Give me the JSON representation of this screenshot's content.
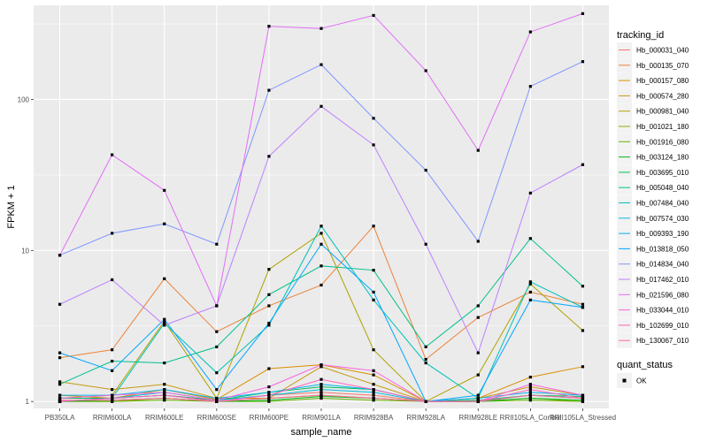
{
  "chart_data": {
    "type": "line",
    "xlabel": "sample_name",
    "ylabel": "FPKM + 1",
    "yscale": "log10",
    "ylim": [
      0.9,
      420
    ],
    "y_ticks": [
      {
        "value": 1,
        "label": "1"
      },
      {
        "value": 10,
        "label": "10"
      },
      {
        "value": 100,
        "label": "100"
      }
    ],
    "categories": [
      "PB350LA",
      "RRIM600LA",
      "RRIM600LE",
      "RRIM600SE",
      "RRIM600PE",
      "RRIM901LA",
      "RRIM928BA",
      "RRIM928LA",
      "RRIM928LE",
      "RRII105LA_Control",
      "RRII105LA_Stressed"
    ],
    "legend": {
      "title": "tracking_id",
      "position": "right",
      "shape_title": "quant_status",
      "shape_label": "OK"
    },
    "grid": true,
    "series": [
      {
        "name": "Hb_000031_040",
        "color": "#F8766D",
        "values": [
          1.0,
          1.05,
          1.1,
          1.02,
          1.1,
          1.15,
          1.1,
          1.0,
          1.0,
          1.1,
          1.05
        ]
      },
      {
        "name": "Hb_000135_070",
        "color": "#EC8239",
        "values": [
          1.95,
          2.2,
          6.5,
          2.9,
          4.3,
          5.9,
          14.5,
          1.9,
          3.6,
          5.3,
          4.4
        ]
      },
      {
        "name": "Hb_000157_080",
        "color": "#DB8E00",
        "values": [
          1.1,
          1.05,
          1.2,
          1.03,
          1.65,
          1.75,
          1.5,
          1.0,
          1.05,
          1.45,
          1.7
        ]
      },
      {
        "name": "Hb_000574_280",
        "color": "#C69910",
        "values": [
          1.35,
          1.2,
          1.3,
          1.05,
          1.05,
          1.7,
          1.3,
          1.0,
          1.05,
          1.25,
          1.1
        ]
      },
      {
        "name": "Hb_000981_040",
        "color": "#AEA200",
        "values": [
          1.05,
          1.1,
          3.4,
          1.05,
          7.5,
          13.0,
          2.2,
          1.0,
          1.5,
          6.0,
          2.95
        ]
      },
      {
        "name": "Hb_001021_180",
        "color": "#8FAA00",
        "values": [
          1.0,
          1.0,
          1.05,
          1.0,
          1.05,
          1.1,
          1.05,
          1.0,
          1.0,
          1.05,
          1.0
        ]
      },
      {
        "name": "Hb_001916_080",
        "color": "#64B200",
        "values": [
          1.0,
          1.0,
          1.02,
          1.0,
          1.0,
          1.05,
          1.02,
          1.0,
          1.0,
          1.02,
          1.0
        ]
      },
      {
        "name": "Hb_003124_180",
        "color": "#00B81B",
        "values": [
          1.0,
          1.02,
          1.05,
          1.0,
          1.02,
          1.08,
          1.05,
          1.0,
          1.0,
          1.05,
          1.02
        ]
      },
      {
        "name": "Hb_003695_010",
        "color": "#00BD5C",
        "values": [
          1.05,
          1.05,
          1.1,
          1.02,
          1.15,
          1.25,
          1.2,
          1.0,
          1.02,
          1.1,
          1.08
        ]
      },
      {
        "name": "Hb_005048_040",
        "color": "#00C08E",
        "values": [
          1.3,
          1.85,
          1.8,
          2.3,
          5.1,
          7.9,
          7.4,
          2.3,
          4.3,
          12.0,
          5.8
        ]
      },
      {
        "name": "Hb_007484_040",
        "color": "#00C1B7",
        "values": [
          1.0,
          1.05,
          3.3,
          1.55,
          3.2,
          14.5,
          4.7,
          1.8,
          1.05,
          6.2,
          4.2
        ]
      },
      {
        "name": "Hb_007574_030",
        "color": "#00BDDC",
        "values": [
          1.0,
          1.05,
          1.15,
          1.02,
          1.1,
          1.2,
          1.15,
          1.0,
          1.0,
          1.1,
          1.05
        ]
      },
      {
        "name": "Hb_009393_190",
        "color": "#00B4EF",
        "values": [
          1.1,
          1.1,
          1.2,
          1.05,
          1.15,
          1.3,
          1.2,
          1.0,
          1.05,
          1.15,
          1.1
        ]
      },
      {
        "name": "Hb_013818_050",
        "color": "#00A7FF",
        "values": [
          2.1,
          1.6,
          3.5,
          1.2,
          3.3,
          11.0,
          5.3,
          1.0,
          1.1,
          4.7,
          4.2
        ]
      },
      {
        "name": "Hb_014834_040",
        "color": "#7F96FF",
        "values": [
          9.3,
          13.0,
          15.0,
          11.0,
          115.0,
          170.0,
          75.0,
          34.0,
          11.5,
          122.0,
          178.0
        ]
      },
      {
        "name": "Hb_017462_010",
        "color": "#BC81FF",
        "values": [
          4.4,
          6.4,
          3.2,
          4.3,
          42.0,
          90.0,
          50.0,
          11.0,
          2.1,
          24.0,
          37.0
        ]
      },
      {
        "name": "Hb_021596_080",
        "color": "#E26EF7",
        "values": [
          9.3,
          43.0,
          25.0,
          4.3,
          305.0,
          295.0,
          360.0,
          155.0,
          46.0,
          280.0,
          370.0
        ]
      },
      {
        "name": "Hb_033044_010",
        "color": "#F863DF",
        "values": [
          1.05,
          1.1,
          1.15,
          1.02,
          1.25,
          1.75,
          1.6,
          1.0,
          1.0,
          1.3,
          1.1
        ]
      },
      {
        "name": "Hb_102699_010",
        "color": "#FF62BF",
        "values": [
          1.0,
          1.05,
          1.1,
          1.0,
          1.1,
          1.4,
          1.2,
          1.0,
          1.0,
          1.2,
          1.05
        ]
      },
      {
        "name": "Hb_130067_010",
        "color": "#FF6A98",
        "values": [
          1.02,
          1.02,
          1.05,
          1.0,
          1.05,
          1.1,
          1.05,
          1.0,
          1.0,
          1.1,
          1.05
        ]
      }
    ]
  }
}
